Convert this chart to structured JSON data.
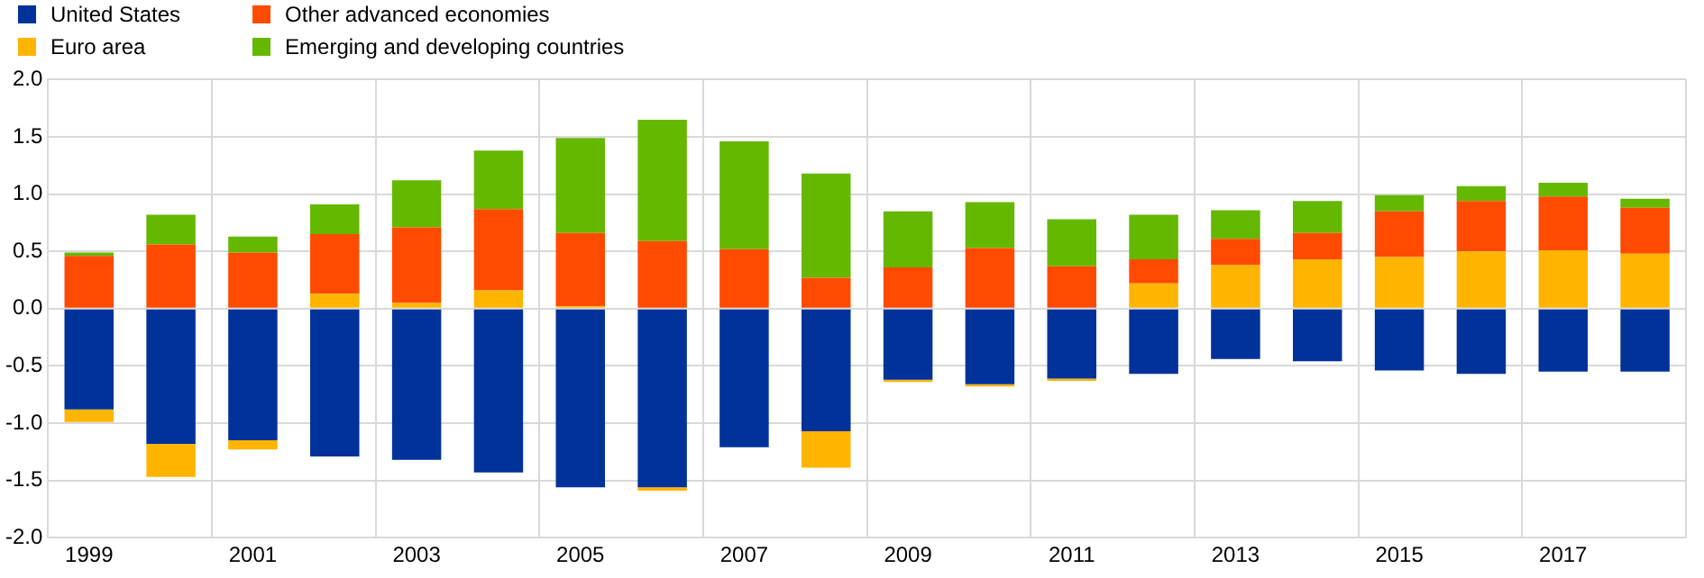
{
  "chart_data": {
    "type": "bar",
    "stacked": true,
    "categories": [
      "1999",
      null,
      "2001",
      null,
      "2003",
      null,
      "2005",
      null,
      "2007",
      null,
      "2009",
      null,
      "2011",
      null,
      "2013",
      null,
      "2015",
      null,
      "2017",
      null
    ],
    "series": [
      {
        "name": "United States",
        "color": "#003299",
        "values": [
          -0.88,
          -1.18,
          -1.15,
          -1.29,
          -1.32,
          -1.43,
          -1.56,
          -1.56,
          -1.21,
          -1.07,
          -0.62,
          -0.66,
          -0.61,
          -0.57,
          -0.44,
          -0.46,
          -0.54,
          -0.57,
          -0.55,
          -0.55
        ]
      },
      {
        "name": "Euro area",
        "color": "#ffb400",
        "values": [
          -0.11,
          -0.29,
          -0.08,
          0.13,
          0.05,
          0.16,
          0.02,
          -0.03,
          null,
          -0.32,
          -0.02,
          -0.02,
          -0.02,
          0.22,
          0.38,
          0.43,
          0.45,
          0.5,
          0.51,
          0.48
        ]
      },
      {
        "name": "Other advanced economies",
        "color": "#ff4b00",
        "values": [
          0.46,
          0.56,
          0.49,
          0.52,
          0.66,
          0.71,
          0.64,
          0.59,
          0.52,
          0.27,
          0.36,
          0.53,
          0.37,
          0.21,
          0.23,
          0.23,
          0.4,
          0.44,
          0.47,
          0.4
        ]
      },
      {
        "name": "Emerging and developing countries",
        "color": "#65b800",
        "values": [
          0.03,
          0.26,
          0.14,
          0.26,
          0.41,
          0.51,
          0.83,
          1.06,
          0.94,
          0.91,
          0.49,
          0.4,
          0.41,
          0.39,
          0.25,
          0.28,
          0.14,
          0.13,
          0.12,
          0.08
        ]
      }
    ],
    "ylim": [
      -2,
      2
    ],
    "yticks": [
      {
        "value": -2,
        "label": "-2.0"
      },
      {
        "value": -1.5,
        "label": "-1.5"
      },
      {
        "value": -1,
        "label": "-1.0"
      },
      {
        "value": -0.5,
        "label": "-0.5"
      },
      {
        "value": 0,
        "label": "0.0"
      },
      {
        "value": 0.5,
        "label": "0.5"
      },
      {
        "value": 1,
        "label": "1.0"
      },
      {
        "value": 1.5,
        "label": "1.5"
      },
      {
        "value": 2,
        "label": "2.0"
      }
    ],
    "grid": true,
    "legend": "top left"
  }
}
